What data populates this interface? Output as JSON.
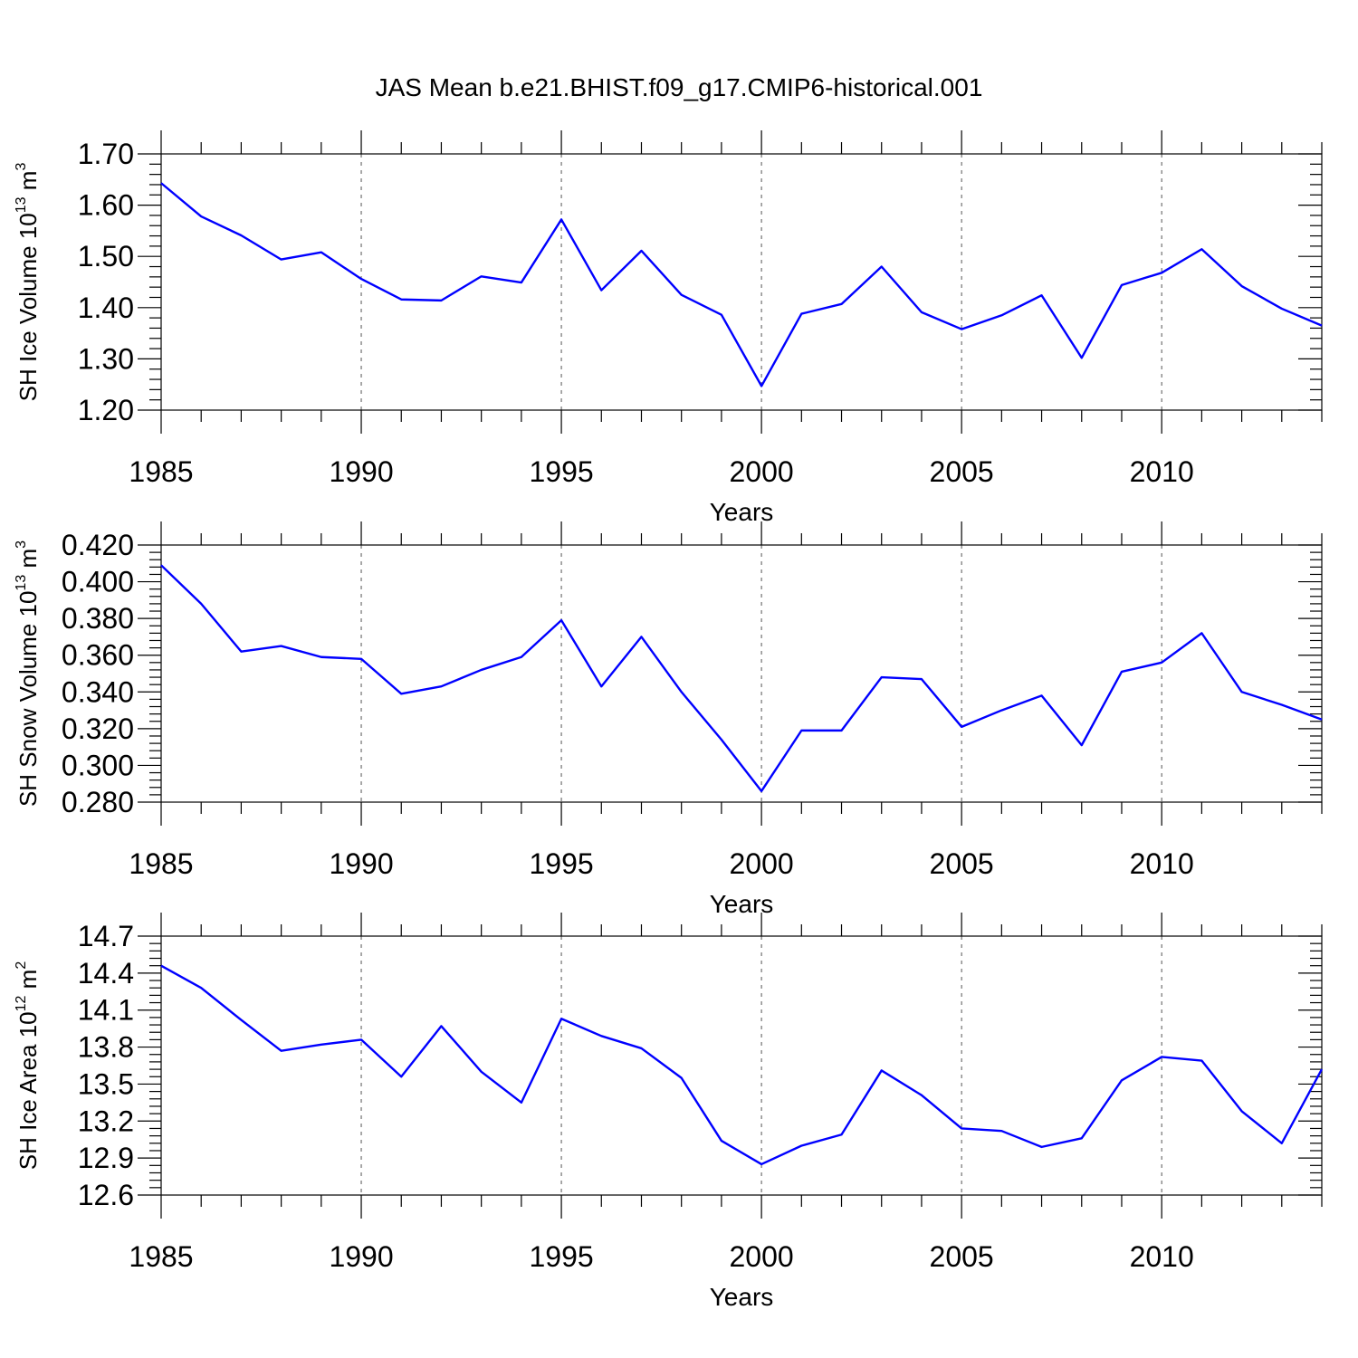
{
  "title": "JAS Mean b.e21.BHIST.f09_g17.CMIP6-historical.001",
  "colors": {
    "series": "#0000ff",
    "axes": "#000000"
  },
  "chart_data": [
    {
      "type": "line",
      "ylabel": {
        "text": "SH Ice Volume 10",
        "exponent": "13",
        "unit": "m",
        "unit_exponent": "3"
      },
      "xlabel": "Years",
      "xlim": [
        1985,
        2014
      ],
      "ylim": [
        1.2,
        1.7
      ],
      "x_ticks": [
        1985,
        1990,
        1995,
        2000,
        2005,
        2010
      ],
      "x_tick_labels": [
        "1985",
        "1990",
        "1995",
        "2000",
        "2005",
        "2010"
      ],
      "y_ticks": [
        1.2,
        1.3,
        1.4,
        1.5,
        1.6,
        1.7
      ],
      "y_tick_labels": [
        "1.20",
        "1.30",
        "1.40",
        "1.50",
        "1.60",
        "1.70"
      ],
      "grid": "vertical dashed at labeled years",
      "x": [
        1985,
        1986,
        1987,
        1988,
        1989,
        1990,
        1991,
        1992,
        1993,
        1994,
        1995,
        1996,
        1997,
        1998,
        1999,
        2000,
        2001,
        2002,
        2003,
        2004,
        2005,
        2006,
        2007,
        2008,
        2009,
        2010,
        2011,
        2012,
        2013,
        2014
      ],
      "values": [
        1.643,
        1.578,
        1.541,
        1.494,
        1.508,
        1.456,
        1.416,
        1.414,
        1.461,
        1.449,
        1.572,
        1.434,
        1.511,
        1.425,
        1.386,
        1.247,
        1.388,
        1.407,
        1.48,
        1.391,
        1.358,
        1.385,
        1.424,
        1.302,
        1.444,
        1.468,
        1.514,
        1.442,
        1.398,
        1.365
      ]
    },
    {
      "type": "line",
      "ylabel": {
        "text": "SH Snow Volume 10",
        "exponent": "13",
        "unit": "m",
        "unit_exponent": "3"
      },
      "xlabel": "Years",
      "xlim": [
        1985,
        2014
      ],
      "ylim": [
        0.28,
        0.42
      ],
      "x_ticks": [
        1985,
        1990,
        1995,
        2000,
        2005,
        2010
      ],
      "x_tick_labels": [
        "1985",
        "1990",
        "1995",
        "2000",
        "2005",
        "2010"
      ],
      "y_ticks": [
        0.28,
        0.3,
        0.32,
        0.34,
        0.36,
        0.38,
        0.4,
        0.42
      ],
      "y_tick_labels": [
        "0.280",
        "0.300",
        "0.320",
        "0.340",
        "0.360",
        "0.380",
        "0.400",
        "0.420"
      ],
      "grid": "vertical dashed at labeled years",
      "x": [
        1985,
        1986,
        1987,
        1988,
        1989,
        1990,
        1991,
        1992,
        1993,
        1994,
        1995,
        1996,
        1997,
        1998,
        1999,
        2000,
        2001,
        2002,
        2003,
        2004,
        2005,
        2006,
        2007,
        2008,
        2009,
        2010,
        2011,
        2012,
        2013,
        2014
      ],
      "values": [
        0.409,
        0.388,
        0.362,
        0.365,
        0.359,
        0.358,
        0.339,
        0.343,
        0.352,
        0.359,
        0.379,
        0.343,
        0.37,
        0.34,
        0.314,
        0.286,
        0.319,
        0.319,
        0.348,
        0.347,
        0.321,
        0.33,
        0.338,
        0.311,
        0.351,
        0.356,
        0.372,
        0.34,
        0.333,
        0.325
      ]
    },
    {
      "type": "line",
      "ylabel": {
        "text": "SH Ice Area 10",
        "exponent": "12",
        "unit": "m",
        "unit_exponent": "2"
      },
      "xlabel": "Years",
      "xlim": [
        1985,
        2014
      ],
      "ylim": [
        12.6,
        14.7
      ],
      "x_ticks": [
        1985,
        1990,
        1995,
        2000,
        2005,
        2010
      ],
      "x_tick_labels": [
        "1985",
        "1990",
        "1995",
        "2000",
        "2005",
        "2010"
      ],
      "y_ticks": [
        12.6,
        12.9,
        13.2,
        13.5,
        13.8,
        14.1,
        14.4,
        14.7
      ],
      "y_tick_labels": [
        "12.6",
        "12.9",
        "13.2",
        "13.5",
        "13.8",
        "14.1",
        "14.4",
        "14.7"
      ],
      "grid": "vertical dashed at labeled years",
      "x": [
        1985,
        1986,
        1987,
        1988,
        1989,
        1990,
        1991,
        1992,
        1993,
        1994,
        1995,
        1996,
        1997,
        1998,
        1999,
        2000,
        2001,
        2002,
        2003,
        2004,
        2005,
        2006,
        2007,
        2008,
        2009,
        2010,
        2011,
        2012,
        2013,
        2014
      ],
      "values": [
        14.46,
        14.28,
        14.02,
        13.77,
        13.82,
        13.86,
        13.56,
        13.97,
        13.6,
        13.35,
        14.03,
        13.89,
        13.79,
        13.55,
        13.04,
        12.85,
        13.0,
        13.09,
        13.61,
        13.41,
        13.14,
        13.12,
        12.99,
        13.06,
        13.53,
        13.72,
        13.69,
        13.28,
        13.02,
        13.62
      ]
    }
  ]
}
